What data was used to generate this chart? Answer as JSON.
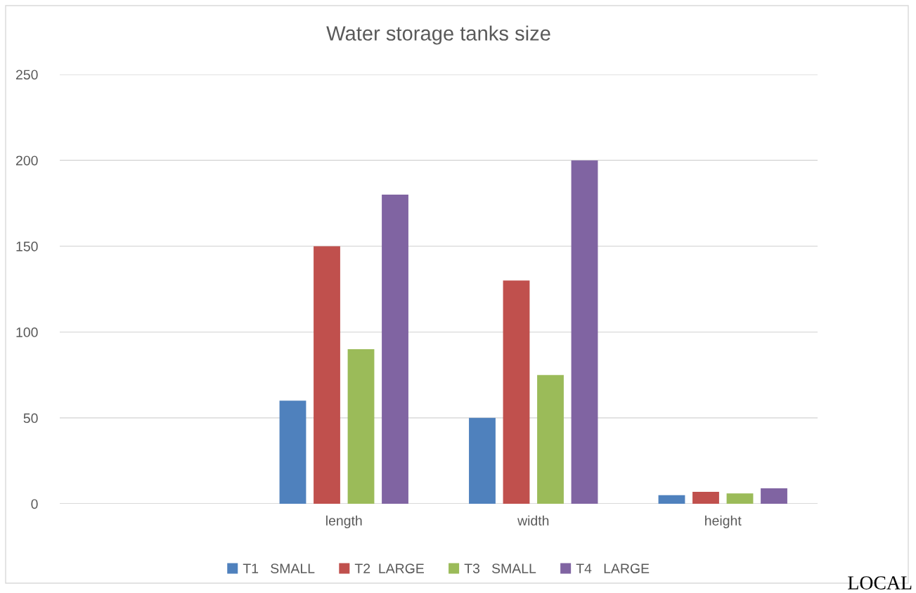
{
  "chart_data": {
    "type": "bar",
    "title": "Water storage tanks size",
    "categories": [
      null,
      "length",
      "width",
      "height"
    ],
    "series": [
      {
        "name": "T1   SMALL",
        "color": "#4f81bd",
        "values": [
          null,
          60,
          50,
          5
        ]
      },
      {
        "name": "T2  LARGE",
        "color": "#c0504d",
        "values": [
          null,
          150,
          130,
          7
        ]
      },
      {
        "name": "T3   SMALL",
        "color": "#9bbb59",
        "values": [
          null,
          90,
          75,
          6
        ]
      },
      {
        "name": "T4   LARGE",
        "color": "#8064a2",
        "values": [
          null,
          180,
          200,
          9
        ]
      }
    ],
    "ylim": [
      0,
      250
    ],
    "yticks": [
      0,
      50,
      100,
      150,
      200,
      250
    ],
    "grid": "y",
    "legend": "bottom",
    "annotations": [
      "LOCAL"
    ]
  }
}
